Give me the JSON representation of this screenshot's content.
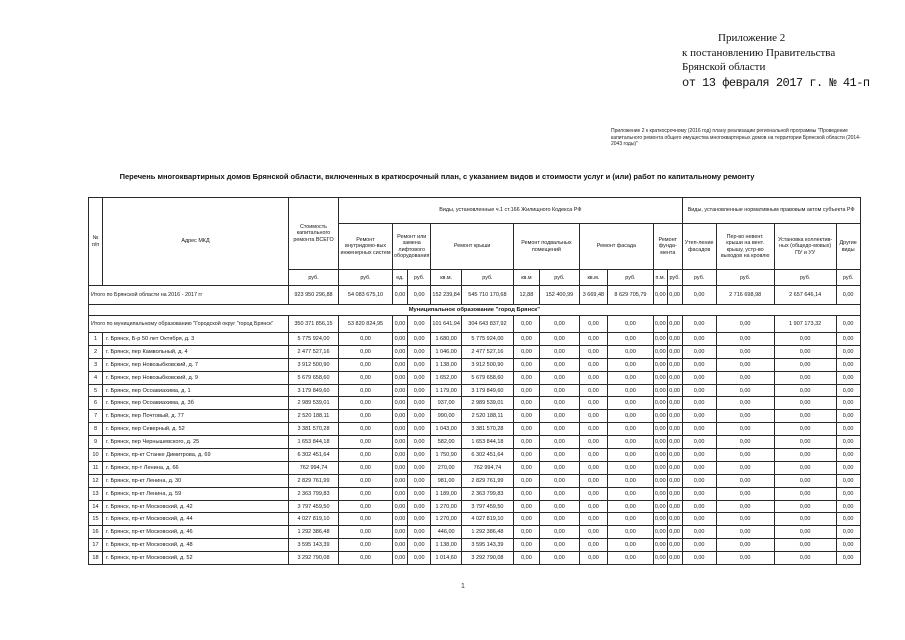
{
  "header": {
    "appendix_lines": [
      "Приложение 2",
      "к постановлению Правительства",
      "Брянской области"
    ],
    "date_line": "от 13 февраля 2017 г. № 41-п"
  },
  "subnote": "Приложение 2 к краткосрочному (2016 год) плану реализации региональной программы \"Проведение капитального ремонта общего имущества многоквартирных домов на территории Брянской области (2014-2043 годы)\"",
  "title": "Перечень многоквартирных домов Брянской области, включенных в краткосрочный план, с указанием видов и стоимости услуг и (или) работ по капитальному ремонту",
  "page_number": "1",
  "table": {
    "col_num": "№ п/п",
    "col_address": "Адрес МКД",
    "col_cost": "Стоимость капитального ремонта ВСЕГО",
    "group_zhk": "Виды, установленные ч.1 ст.166 Жилищного Кодекса РФ",
    "group_subject": "Виды, установленные нормативным правовым актом субъекта РФ",
    "col_systems": "Ремонт внутридомо-вых инженерных систем",
    "col_lift": "Ремонт или замена лифтового оборудования",
    "col_roof": "Ремонт крыши",
    "col_basement": "Ремонт подвальных помещений",
    "col_facade": "Ремонт фасада",
    "col_foundation": "Ремонт фунда-мента",
    "col_insulation": "Утеп-ление фасадов",
    "col_roof_convert": "Пер-во невент. крыши на вент. крышу, устр-во выходов на кровлю",
    "col_meters": "Установка коллектив-ных (общедо-мовых) ПУ и УУ",
    "col_other": "Другие виды",
    "units": [
      "руб.",
      "руб.",
      "ед.",
      "руб.",
      "кв.м.",
      "руб.",
      "кв.м",
      "руб.",
      "кв.м.",
      "руб.",
      "п.м.",
      "руб.",
      "руб.",
      "руб.",
      "руб.",
      "руб."
    ],
    "totals_region": {
      "label": "Итого по Брянской области на 2016 - 2017 гг",
      "values": [
        "923 950 296,88",
        "54 083 675,10",
        "0,00",
        "0,00",
        "152 239,84",
        "545 710 170,68",
        "12,88",
        "152 400,99",
        "3 669,48",
        "8 629 705,79",
        "0,00",
        "0,00",
        "0,00",
        "2 716 698,98",
        "2 657 646,14",
        "0,00"
      ]
    },
    "section": "Муниципальное образование \"город Брянск\"",
    "totals_municipal": {
      "label": "Итого по муниципальному образованию \"Городской округ \"город Брянск\"",
      "values": [
        "350 371 856,15",
        "53 820 824,95",
        "0,00",
        "0,00",
        "101 641,94",
        "304 643 837,92",
        "0,00",
        "0,00",
        "0,00",
        "0,00",
        "0,00",
        "0,00",
        "0,00",
        "0,00",
        "1 907 173,32",
        "0,00"
      ]
    },
    "rows": [
      {
        "num": "1",
        "address": "г. Брянск, Б-р 50 лет Октября, д. 3",
        "values": [
          "5 775 924,00",
          "0,00",
          "0,00",
          "0,00",
          "1 680,00",
          "5 775 924,00",
          "0,00",
          "0,00",
          "0,00",
          "0,00",
          "0,00",
          "0,00",
          "0,00",
          "0,00",
          "0,00",
          "0,00"
        ]
      },
      {
        "num": "2",
        "address": "г. Брянск, пер Камвольный, д. 4",
        "values": [
          "2 477 527,16",
          "0,00",
          "0,00",
          "0,00",
          "1 046,00",
          "2 477 527,16",
          "0,00",
          "0,00",
          "0,00",
          "0,00",
          "0,00",
          "0,00",
          "0,00",
          "0,00",
          "0,00",
          "0,00"
        ]
      },
      {
        "num": "3",
        "address": "г. Брянск, пер Новозыбковский, д. 7",
        "values": [
          "3 912 500,90",
          "0,00",
          "0,00",
          "0,00",
          "1 138,00",
          "3 912 500,90",
          "0,00",
          "0,00",
          "0,00",
          "0,00",
          "0,00",
          "0,00",
          "0,00",
          "0,00",
          "0,00",
          "0,00"
        ]
      },
      {
        "num": "4",
        "address": "г. Брянск, пер Новозыбковский, д. 9",
        "values": [
          "5 679 658,60",
          "0,00",
          "0,00",
          "0,00",
          "1 652,00",
          "5 679 658,60",
          "0,00",
          "0,00",
          "0,00",
          "0,00",
          "0,00",
          "0,00",
          "0,00",
          "0,00",
          "0,00",
          "0,00"
        ]
      },
      {
        "num": "5",
        "address": "г. Брянск, пер Осоавиахима, д. 1",
        "values": [
          "3 179 849,60",
          "0,00",
          "0,00",
          "0,00",
          "1 179,00",
          "3 179 849,60",
          "0,00",
          "0,00",
          "0,00",
          "0,00",
          "0,00",
          "0,00",
          "0,00",
          "0,00",
          "0,00",
          "0,00"
        ]
      },
      {
        "num": "6",
        "address": "г. Брянск, пер Осоавиахима, д. 3б",
        "values": [
          "2 989 539,01",
          "0,00",
          "0,00",
          "0,00",
          "937,00",
          "2 989 539,01",
          "0,00",
          "0,00",
          "0,00",
          "0,00",
          "0,00",
          "0,00",
          "0,00",
          "0,00",
          "0,00",
          "0,00"
        ]
      },
      {
        "num": "7",
        "address": "г. Брянск, пер Почтовый, д. 77",
        "values": [
          "2 520 188,11",
          "0,00",
          "0,00",
          "0,00",
          "990,00",
          "2 520 188,11",
          "0,00",
          "0,00",
          "0,00",
          "0,00",
          "0,00",
          "0,00",
          "0,00",
          "0,00",
          "0,00",
          "0,00"
        ]
      },
      {
        "num": "8",
        "address": "г. Брянск, пер Северный, д. 52",
        "values": [
          "3 381 570,28",
          "0,00",
          "0,00",
          "0,00",
          "1 043,00",
          "3 381 570,28",
          "0,00",
          "0,00",
          "0,00",
          "0,00",
          "0,00",
          "0,00",
          "0,00",
          "0,00",
          "0,00",
          "0,00"
        ]
      },
      {
        "num": "9",
        "address": "г. Брянск, пер Чернышевского, д. 25",
        "values": [
          "1 653 844,18",
          "0,00",
          "0,00",
          "0,00",
          "582,00",
          "1 653 844,18",
          "0,00",
          "0,00",
          "0,00",
          "0,00",
          "0,00",
          "0,00",
          "0,00",
          "0,00",
          "0,00",
          "0,00"
        ]
      },
      {
        "num": "10",
        "address": "г. Брянск, пр-кт Станке Димитрова, д. 69",
        "values": [
          "6 302 451,64",
          "0,00",
          "0,00",
          "0,00",
          "1 750,90",
          "6 302 451,64",
          "0,00",
          "0,00",
          "0,00",
          "0,00",
          "0,00",
          "0,00",
          "0,00",
          "0,00",
          "0,00",
          "0,00"
        ]
      },
      {
        "num": "11",
        "address": "г. Брянск, пр-т Ленина, д. 66",
        "values": [
          "762 994,74",
          "0,00",
          "0,00",
          "0,00",
          "270,00",
          "762 994,74",
          "0,00",
          "0,00",
          "0,00",
          "0,00",
          "0,00",
          "0,00",
          "0,00",
          "0,00",
          "0,00",
          "0,00"
        ]
      },
      {
        "num": "12",
        "address": "г. Брянск, пр-кт Ленина, д. 30",
        "values": [
          "2 829 761,99",
          "0,00",
          "0,00",
          "0,00",
          "981,00",
          "2 829 761,99",
          "0,00",
          "0,00",
          "0,00",
          "0,00",
          "0,00",
          "0,00",
          "0,00",
          "0,00",
          "0,00",
          "0,00"
        ]
      },
      {
        "num": "13",
        "address": "г. Брянск, пр-кт Ленина, д. 59",
        "values": [
          "2 363 799,83",
          "0,00",
          "0,00",
          "0,00",
          "1 189,00",
          "2 363 799,83",
          "0,00",
          "0,00",
          "0,00",
          "0,00",
          "0,00",
          "0,00",
          "0,00",
          "0,00",
          "0,00",
          "0,00"
        ]
      },
      {
        "num": "14",
        "address": "г. Брянск, пр-кт Московский, д. 42",
        "values": [
          "3 797 459,50",
          "0,00",
          "0,00",
          "0,00",
          "1 270,00",
          "3 797 459,50",
          "0,00",
          "0,00",
          "0,00",
          "0,00",
          "0,00",
          "0,00",
          "0,00",
          "0,00",
          "0,00",
          "0,00"
        ]
      },
      {
        "num": "15",
        "address": "г. Брянск, пр-кт Московский, д. 44",
        "values": [
          "4 027 819,10",
          "0,00",
          "0,00",
          "0,00",
          "1 270,00",
          "4 027 819,10",
          "0,00",
          "0,00",
          "0,00",
          "0,00",
          "0,00",
          "0,00",
          "0,00",
          "0,00",
          "0,00",
          "0,00"
        ]
      },
      {
        "num": "16",
        "address": "г. Брянск, пр-кт Московский, д. 46",
        "values": [
          "1 292 386,48",
          "0,00",
          "0,00",
          "0,00",
          "446,00",
          "1 292 386,48",
          "0,00",
          "0,00",
          "0,00",
          "0,00",
          "0,00",
          "0,00",
          "0,00",
          "0,00",
          "0,00",
          "0,00"
        ]
      },
      {
        "num": "17",
        "address": "г. Брянск, пр-кт Московский, д. 48",
        "values": [
          "3 595 143,39",
          "0,00",
          "0,00",
          "0,00",
          "1 138,00",
          "3 595 143,39",
          "0,00",
          "0,00",
          "0,00",
          "0,00",
          "0,00",
          "0,00",
          "0,00",
          "0,00",
          "0,00",
          "0,00"
        ]
      },
      {
        "num": "18",
        "address": "г. Брянск, пр-кт Московский, д. 52",
        "values": [
          "3 292 790,08",
          "0,00",
          "0,00",
          "0,00",
          "1 014,60",
          "3 292 790,08",
          "0,00",
          "0,00",
          "0,00",
          "0,00",
          "0,00",
          "0,00",
          "0,00",
          "0,00",
          "0,00",
          "0,00"
        ]
      }
    ]
  }
}
